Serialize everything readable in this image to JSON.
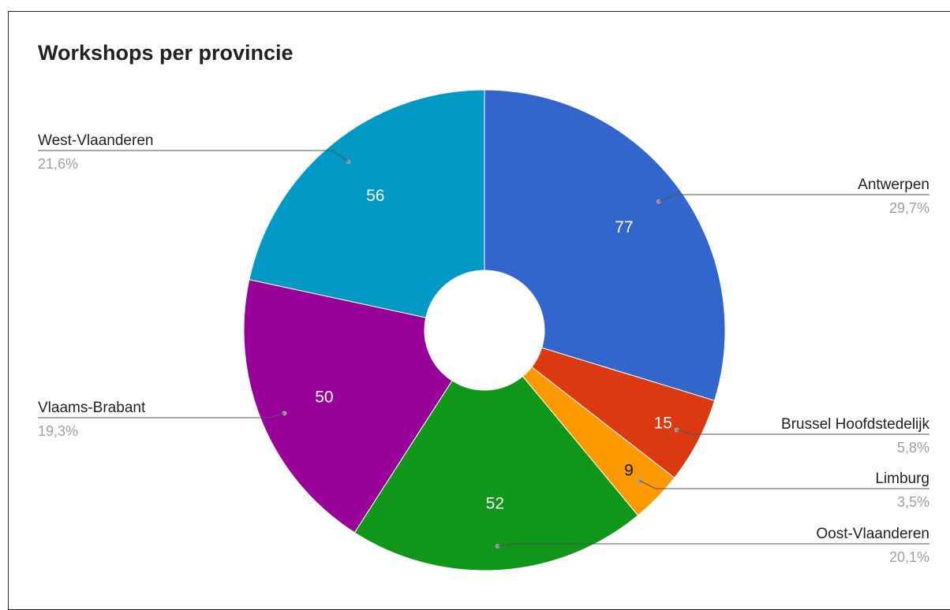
{
  "chart_data": {
    "type": "pie",
    "donut": true,
    "title": "Workshops per provincie",
    "slices": [
      {
        "label": "Antwerpen",
        "value": 77,
        "percent": "29,7%",
        "color": "#3366cc",
        "value_color": "#ffffff",
        "side": "right"
      },
      {
        "label": "Brussel Hoofdstedelijk",
        "value": 15,
        "percent": "5,8%",
        "color": "#dc3912",
        "value_color": "#ffffff",
        "side": "right"
      },
      {
        "label": "Limburg",
        "value": 9,
        "percent": "3,5%",
        "color": "#ff9900",
        "value_color": "#111111",
        "side": "right"
      },
      {
        "label": "Oost-Vlaanderen",
        "value": 52,
        "percent": "20,1%",
        "color": "#109618",
        "value_color": "#ffffff",
        "side": "right"
      },
      {
        "label": "Vlaams-Brabant",
        "value": 50,
        "percent": "19,3%",
        "color": "#990099",
        "value_color": "#ffffff",
        "side": "left"
      },
      {
        "label": "West-Vlaanderen",
        "value": 56,
        "percent": "21,6%",
        "color": "#0099c6",
        "value_color": "#ffffff",
        "side": "left"
      }
    ]
  }
}
